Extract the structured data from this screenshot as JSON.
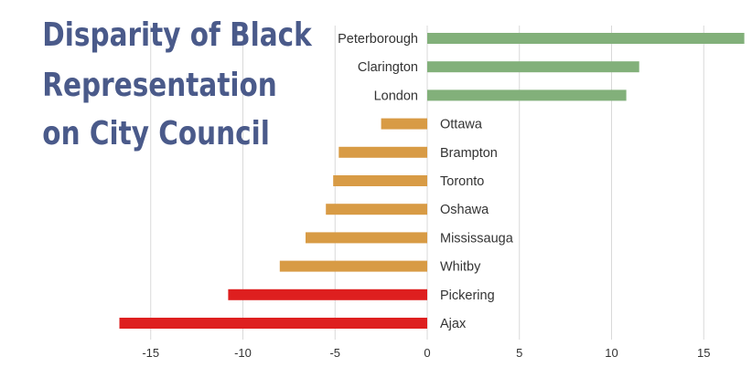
{
  "chart_data": {
    "type": "bar",
    "orientation": "horizontal",
    "title_lines": [
      "Disparity of Black",
      "Representation",
      "on City Council"
    ],
    "categories": [
      "Peterborough",
      "Clarington",
      "London",
      "Ottawa",
      "Brampton",
      "Toronto",
      "Oshawa",
      "Mississauga",
      "Whitby",
      "Pickering",
      "Ajax"
    ],
    "values": [
      17.2,
      11.5,
      10.8,
      -2.5,
      -4.8,
      -5.1,
      -5.5,
      -6.6,
      -8.0,
      -10.8,
      -16.7
    ],
    "colors": [
      "#82b07a",
      "#82b07a",
      "#82b07a",
      "#d89b45",
      "#d89b45",
      "#d89b45",
      "#d89b45",
      "#d89b45",
      "#d89b45",
      "#de1f1f",
      "#de1f1f"
    ],
    "xlim": [
      -17,
      17.2
    ],
    "xticks": [
      -15,
      -10,
      -5,
      0,
      5,
      10,
      15
    ],
    "grid": "vertical",
    "xlabel": "",
    "ylabel": ""
  }
}
